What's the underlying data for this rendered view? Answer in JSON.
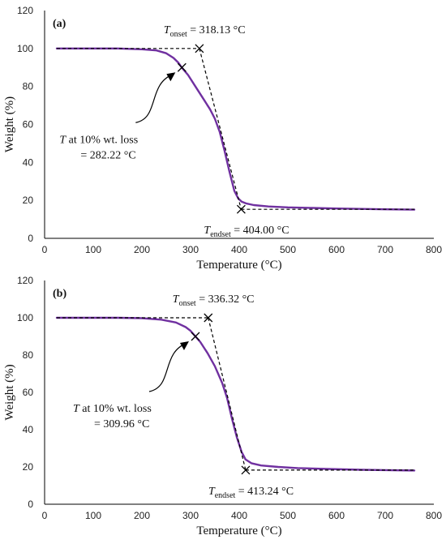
{
  "colors": {
    "curve": "#7030A0",
    "axis": "#000000",
    "dashed": "#000000"
  },
  "chart_data": [
    {
      "type": "line",
      "panel_label": "(a)",
      "xlabel": "Temperature (°C)",
      "ylabel": "Weight (%)",
      "xlim": [
        0,
        800
      ],
      "ylim": [
        0,
        120
      ],
      "x_ticks": [
        "0",
        "100",
        "200",
        "300",
        "400",
        "500",
        "600",
        "700",
        "800"
      ],
      "y_ticks": [
        "0",
        "20",
        "40",
        "60",
        "80",
        "100",
        "120"
      ],
      "grid": false,
      "series": [
        {
          "x": [
            25,
            100,
            150,
            200,
            230,
            250,
            265,
            275,
            282,
            295,
            310,
            325,
            340,
            350,
            360,
            370,
            380,
            390,
            398,
            405,
            415,
            430,
            460,
            500,
            550,
            600,
            650,
            700,
            760
          ],
          "y": [
            100,
            100,
            100,
            99.6,
            99,
            97.5,
            95,
            92.5,
            90,
            86,
            80,
            74,
            68,
            63,
            56,
            46,
            35,
            25,
            21,
            19.3,
            18.3,
            17.5,
            16.8,
            16.3,
            16,
            15.7,
            15.5,
            15.3,
            15.1
          ]
        }
      ],
      "onset": {
        "x": 318.13,
        "y": 100,
        "label_T": "T",
        "label_sub": "onset",
        "label_val": " = 318.13 °C"
      },
      "endset": {
        "x": 404.0,
        "y": 15.3,
        "label_T": "T",
        "label_sub": "endset",
        "label_val": " = 404.00 °C"
      },
      "wt_loss": {
        "x": 282.22,
        "y": 90,
        "line1_T": "T",
        "line1_rest": " at 10% wt. loss",
        "line2": "= 282.22 °C"
      }
    },
    {
      "type": "line",
      "panel_label": "(b)",
      "xlabel": "Temperature (°C)",
      "ylabel": "Weight (%)",
      "xlim": [
        0,
        800
      ],
      "ylim": [
        0,
        120
      ],
      "x_ticks": [
        "0",
        "100",
        "200",
        "300",
        "400",
        "500",
        "600",
        "700",
        "800"
      ],
      "y_ticks": [
        "0",
        "20",
        "40",
        "60",
        "80",
        "100",
        "120"
      ],
      "grid": false,
      "series": [
        {
          "x": [
            25,
            100,
            150,
            200,
            240,
            270,
            290,
            300,
            310,
            320,
            335,
            350,
            365,
            375,
            385,
            395,
            405,
            413,
            425,
            445,
            480,
            520,
            580,
            650,
            700,
            760
          ],
          "y": [
            100,
            100,
            100,
            99.8,
            99,
            97.5,
            95,
            93,
            90,
            87,
            81,
            74,
            65,
            57,
            46,
            36,
            28,
            24,
            22,
            20.8,
            20,
            19.4,
            18.9,
            18.5,
            18.3,
            18.1
          ]
        }
      ],
      "onset": {
        "x": 336.32,
        "y": 100,
        "label_T": "T",
        "label_sub": "onset",
        "label_val": " = 336.32 °C"
      },
      "endset": {
        "x": 413.24,
        "y": 18.3,
        "label_T": "T",
        "label_sub": "endset",
        "label_val": " = 413.24 °C"
      },
      "wt_loss": {
        "x": 309.96,
        "y": 90,
        "line1_T": "T",
        "line1_rest": " at 10% wt. loss",
        "line2": "= 309.96 °C"
      }
    }
  ]
}
